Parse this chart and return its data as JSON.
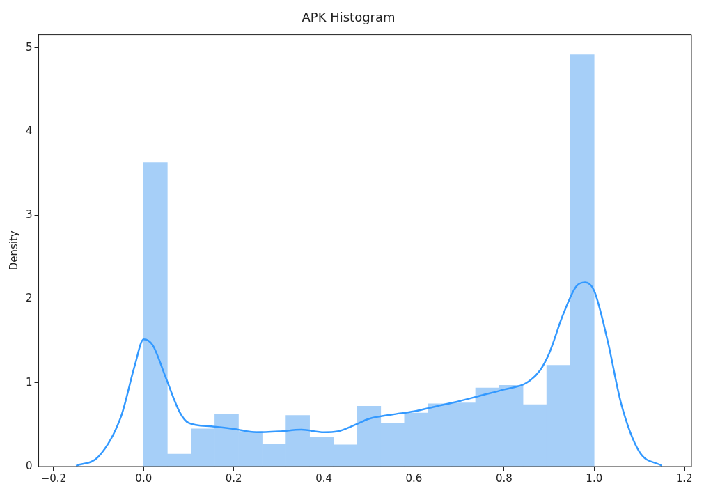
{
  "chart_data": {
    "type": "histogram",
    "title": "APK Histogram",
    "ylabel": "Density",
    "color": "#a6cff8",
    "bins": [
      0,
      0.0526,
      0.1053,
      0.1579,
      0.2105,
      0.2632,
      0.3158,
      0.3684,
      0.4211,
      0.4737,
      0.5263,
      0.5789,
      0.6316,
      0.6842,
      0.7368,
      0.7895,
      0.8421,
      0.8947,
      0.9474,
      1.0
    ],
    "values": [
      3.63,
      0.15,
      0.45,
      0.63,
      0.42,
      0.27,
      0.61,
      0.35,
      0.26,
      0.72,
      0.52,
      0.64,
      0.75,
      0.76,
      0.94,
      0.97,
      0.74,
      1.21,
      4.92
    ],
    "series": [
      {
        "type": "line",
        "color": "#3399ff",
        "x": [
          -0.15,
          -0.1,
          -0.05,
          -0.02,
          0,
          0.02,
          0.05,
          0.08,
          0.1,
          0.15,
          0.2,
          0.25,
          0.3,
          0.35,
          0.4,
          0.43,
          0.47,
          0.5,
          0.55,
          0.6,
          0.65,
          0.7,
          0.75,
          0.8,
          0.85,
          0.88,
          0.9,
          0.93,
          0.96,
          0.98,
          1.0,
          1.03,
          1.06,
          1.1,
          1.15
        ],
        "values": [
          0.01,
          0.12,
          0.6,
          1.2,
          1.52,
          1.45,
          1.05,
          0.65,
          0.52,
          0.48,
          0.45,
          0.41,
          0.42,
          0.44,
          0.41,
          0.42,
          0.5,
          0.57,
          0.62,
          0.66,
          0.72,
          0.78,
          0.85,
          0.92,
          1.0,
          1.15,
          1.35,
          1.8,
          2.15,
          2.2,
          2.1,
          1.5,
          0.75,
          0.18,
          0.01
        ]
      }
    ],
    "xlim": [
      -0.233,
      1.216
    ],
    "xticks": [
      -0.2,
      {
        "value": 0,
        "label": "0.0"
      },
      0.2,
      0.4,
      0.6,
      0.8,
      {
        "value": 1,
        "label": "1.0"
      },
      1.2
    ],
    "ylim": [
      0,
      5.16
    ],
    "yticks": [
      0,
      1,
      2,
      3,
      4,
      5
    ],
    "grid": false,
    "legend": false
  }
}
